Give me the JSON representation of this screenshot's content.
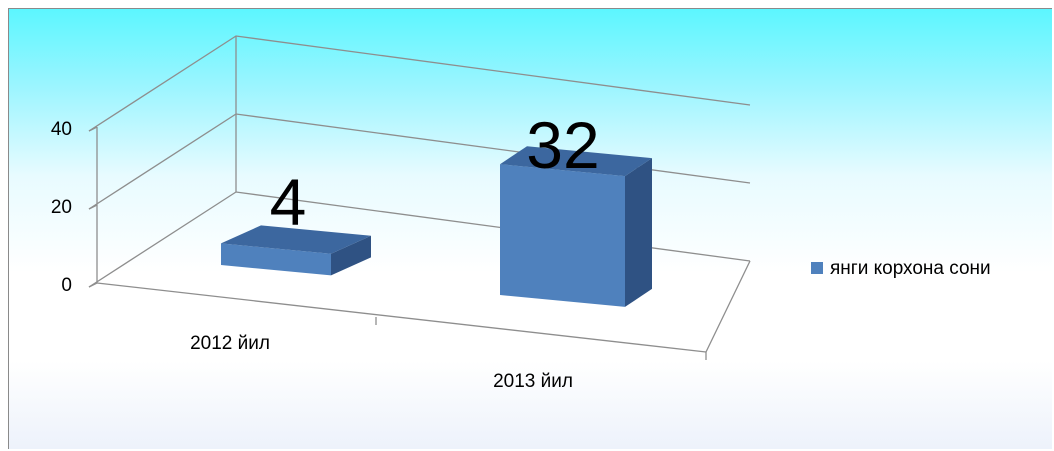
{
  "chart_data": {
    "type": "bar",
    "three_d": true,
    "title": "",
    "xlabel": "",
    "ylabel": "",
    "categories": [
      "2012 йил",
      "2013 йил"
    ],
    "series": [
      {
        "name": "янги корхона сони",
        "values": [
          4,
          32
        ],
        "color": "#4f81bd"
      }
    ],
    "data_labels": [
      "4",
      "32"
    ],
    "yticks": [
      "0",
      "20",
      "40"
    ],
    "ylim": [
      0,
      40
    ],
    "grid": true,
    "legend": "right",
    "background_gradient": [
      "#5cf6ff",
      "#ffffff",
      "#edf2fb"
    ]
  }
}
